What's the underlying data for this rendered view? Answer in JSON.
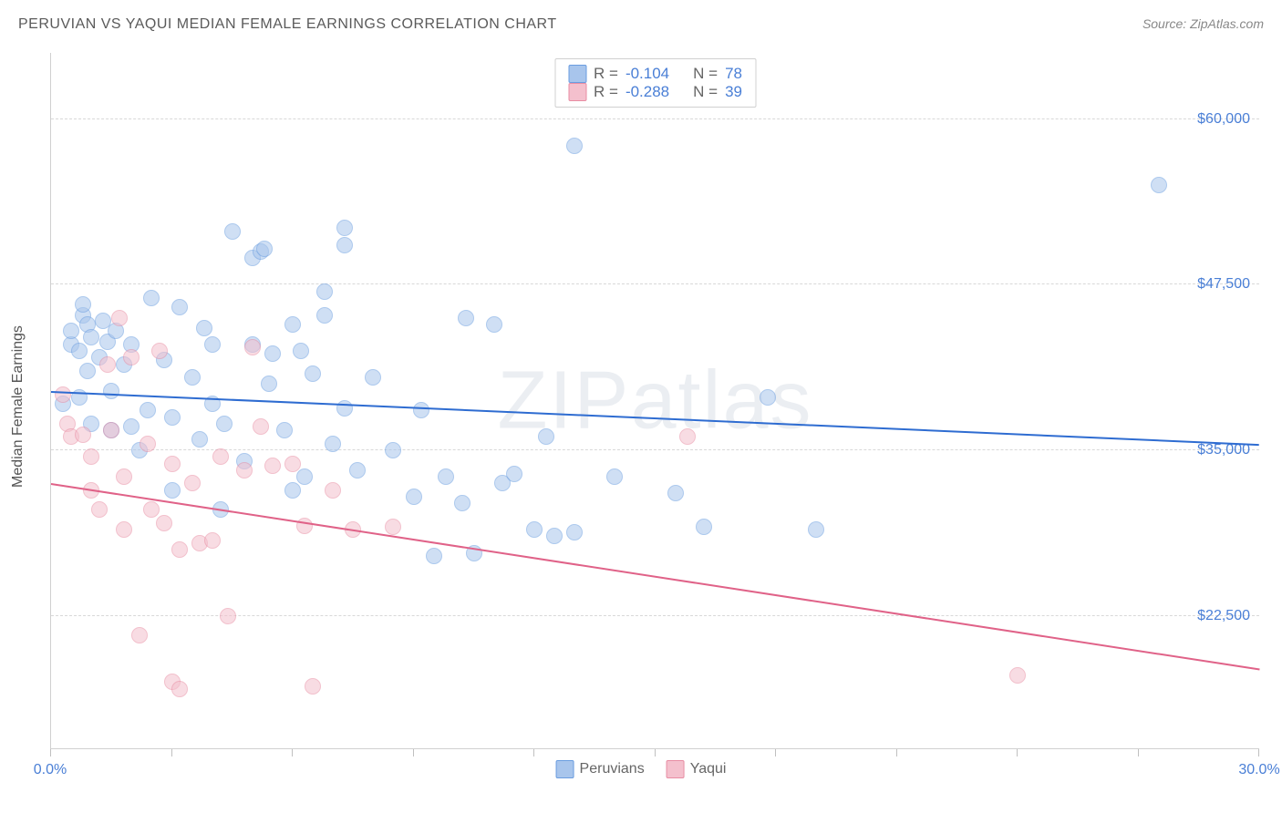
{
  "title": "PERUVIAN VS YAQUI MEDIAN FEMALE EARNINGS CORRELATION CHART",
  "source_label": "Source:",
  "source_value": "ZipAtlas.com",
  "watermark": "ZIPatlas",
  "y_axis_title": "Median Female Earnings",
  "x_min_label": "0.0%",
  "x_max_label": "30.0%",
  "chart": {
    "type": "scatter",
    "xlim": [
      0,
      30
    ],
    "ylim": [
      12500,
      65000
    ],
    "grid_color": "#d8d8d8",
    "grid_dash": true,
    "background_color": "#ffffff",
    "axis_color": "#d0d0d0",
    "label_color": "#4a7fd6",
    "title_fontsize": 16,
    "label_fontsize": 16,
    "y_gridlines": [
      22500,
      35000,
      47500,
      60000
    ],
    "y_grid_labels": [
      "$22,500",
      "$35,000",
      "$47,500",
      "$60,000"
    ],
    "x_ticks": [
      0,
      3,
      6,
      9,
      12,
      15,
      18,
      21,
      24,
      27,
      30
    ],
    "point_radius": 9,
    "point_opacity": 0.55,
    "trendline_width": 2,
    "series": [
      {
        "name": "Peruvians",
        "fill_color": "#a8c5ec",
        "stroke_color": "#6a9de0",
        "line_color": "#2e6cd1",
        "R": "-0.104",
        "N": "78",
        "trend_start": [
          0,
          39500
        ],
        "trend_end": [
          30,
          35500
        ],
        "points": [
          [
            0.3,
            38500
          ],
          [
            0.5,
            43000
          ],
          [
            0.5,
            44000
          ],
          [
            0.7,
            39000
          ],
          [
            0.7,
            42500
          ],
          [
            0.8,
            45200
          ],
          [
            0.8,
            46000
          ],
          [
            0.9,
            44500
          ],
          [
            0.9,
            41000
          ],
          [
            1.0,
            37000
          ],
          [
            1.0,
            43500
          ],
          [
            1.2,
            42000
          ],
          [
            1.3,
            44800
          ],
          [
            1.4,
            43200
          ],
          [
            1.5,
            39500
          ],
          [
            1.5,
            36500
          ],
          [
            1.6,
            44000
          ],
          [
            1.8,
            41500
          ],
          [
            2.0,
            36800
          ],
          [
            2.0,
            43000
          ],
          [
            2.2,
            35000
          ],
          [
            2.4,
            38000
          ],
          [
            2.5,
            46500
          ],
          [
            2.8,
            41800
          ],
          [
            3.0,
            37500
          ],
          [
            3.0,
            32000
          ],
          [
            3.2,
            45800
          ],
          [
            3.5,
            40500
          ],
          [
            3.7,
            35800
          ],
          [
            3.8,
            44200
          ],
          [
            4.0,
            38500
          ],
          [
            4.0,
            43000
          ],
          [
            4.2,
            30500
          ],
          [
            4.3,
            37000
          ],
          [
            4.5,
            51500
          ],
          [
            4.8,
            34200
          ],
          [
            5.0,
            43000
          ],
          [
            5.0,
            49500
          ],
          [
            5.2,
            50000
          ],
          [
            5.3,
            50200
          ],
          [
            5.4,
            40000
          ],
          [
            5.5,
            42300
          ],
          [
            5.8,
            36500
          ],
          [
            6.0,
            32000
          ],
          [
            6.0,
            44500
          ],
          [
            6.2,
            42500
          ],
          [
            6.3,
            33000
          ],
          [
            6.5,
            40800
          ],
          [
            6.8,
            45200
          ],
          [
            6.8,
            47000
          ],
          [
            7.0,
            35500
          ],
          [
            7.3,
            38200
          ],
          [
            7.3,
            51800
          ],
          [
            7.3,
            50500
          ],
          [
            7.6,
            33500
          ],
          [
            8.0,
            40500
          ],
          [
            8.5,
            35000
          ],
          [
            9.0,
            31500
          ],
          [
            9.2,
            38000
          ],
          [
            9.5,
            27000
          ],
          [
            9.8,
            33000
          ],
          [
            10.2,
            31000
          ],
          [
            10.3,
            45000
          ],
          [
            10.5,
            27200
          ],
          [
            11.0,
            44500
          ],
          [
            11.2,
            32500
          ],
          [
            11.5,
            33200
          ],
          [
            12.0,
            29000
          ],
          [
            12.3,
            36000
          ],
          [
            12.5,
            28500
          ],
          [
            13.0,
            58000
          ],
          [
            13.0,
            28800
          ],
          [
            14.0,
            33000
          ],
          [
            15.5,
            31800
          ],
          [
            16.2,
            29200
          ],
          [
            17.8,
            39000
          ],
          [
            19.0,
            29000
          ],
          [
            27.5,
            55000
          ]
        ]
      },
      {
        "name": "Yaqui",
        "fill_color": "#f4c0cd",
        "stroke_color": "#e88da3",
        "line_color": "#e06288",
        "R": "-0.288",
        "N": "39",
        "trend_start": [
          0,
          32500
        ],
        "trend_end": [
          30,
          18500
        ],
        "points": [
          [
            0.3,
            39200
          ],
          [
            0.4,
            37000
          ],
          [
            0.5,
            36000
          ],
          [
            0.8,
            36200
          ],
          [
            1.0,
            32000
          ],
          [
            1.0,
            34500
          ],
          [
            1.2,
            30500
          ],
          [
            1.4,
            41500
          ],
          [
            1.5,
            36500
          ],
          [
            1.7,
            45000
          ],
          [
            1.8,
            29000
          ],
          [
            1.8,
            33000
          ],
          [
            2.0,
            42000
          ],
          [
            2.2,
            21000
          ],
          [
            2.4,
            35500
          ],
          [
            2.5,
            30500
          ],
          [
            2.7,
            42500
          ],
          [
            2.8,
            29500
          ],
          [
            3.0,
            17500
          ],
          [
            3.0,
            34000
          ],
          [
            3.2,
            27500
          ],
          [
            3.2,
            17000
          ],
          [
            3.5,
            32500
          ],
          [
            3.7,
            28000
          ],
          [
            4.0,
            28200
          ],
          [
            4.2,
            34500
          ],
          [
            4.4,
            22500
          ],
          [
            4.8,
            33500
          ],
          [
            5.0,
            42800
          ],
          [
            5.2,
            36800
          ],
          [
            5.5,
            33800
          ],
          [
            6.0,
            34000
          ],
          [
            6.3,
            29300
          ],
          [
            6.5,
            17200
          ],
          [
            7.0,
            32000
          ],
          [
            7.5,
            29000
          ],
          [
            8.5,
            29200
          ],
          [
            15.8,
            36000
          ],
          [
            24.0,
            18000
          ]
        ]
      }
    ]
  },
  "legend_top": {
    "r_label": "R =",
    "n_label": "N ="
  },
  "legend_bottom": {
    "items": [
      "Peruvians",
      "Yaqui"
    ]
  }
}
